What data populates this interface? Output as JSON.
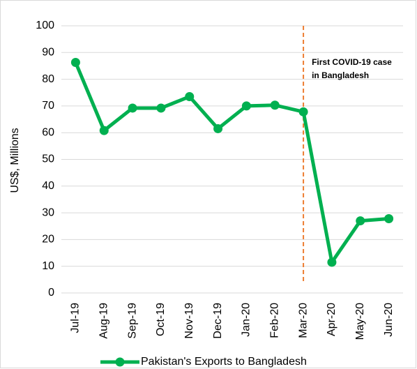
{
  "chart_data": {
    "type": "line",
    "y_axis_label": "US$, Millions",
    "categories": [
      "Jul-19",
      "Aug-19",
      "Sep-19",
      "Oct-19",
      "Nov-19",
      "Dec-19",
      "Jan-20",
      "Feb-20",
      "Mar-20",
      "Apr-20",
      "May-20",
      "Jun-20"
    ],
    "series": [
      {
        "name": "Pakistan's Exports to Bangladesh",
        "color": "#00b050",
        "values": [
          86.3,
          60.8,
          69.2,
          69.2,
          73.5,
          61.5,
          70,
          70.3,
          67.8,
          11.5,
          27,
          27.8
        ]
      }
    ],
    "ylim": [
      0,
      100
    ],
    "yticks": [
      0,
      10,
      20,
      30,
      40,
      50,
      60,
      70,
      80,
      90,
      100
    ],
    "grid": true,
    "legend": "bottom",
    "annotation": {
      "text": [
        "First COVID-19 case",
        "in Bangladesh"
      ],
      "at": "Mar-20",
      "color": "#ed7d31"
    }
  }
}
